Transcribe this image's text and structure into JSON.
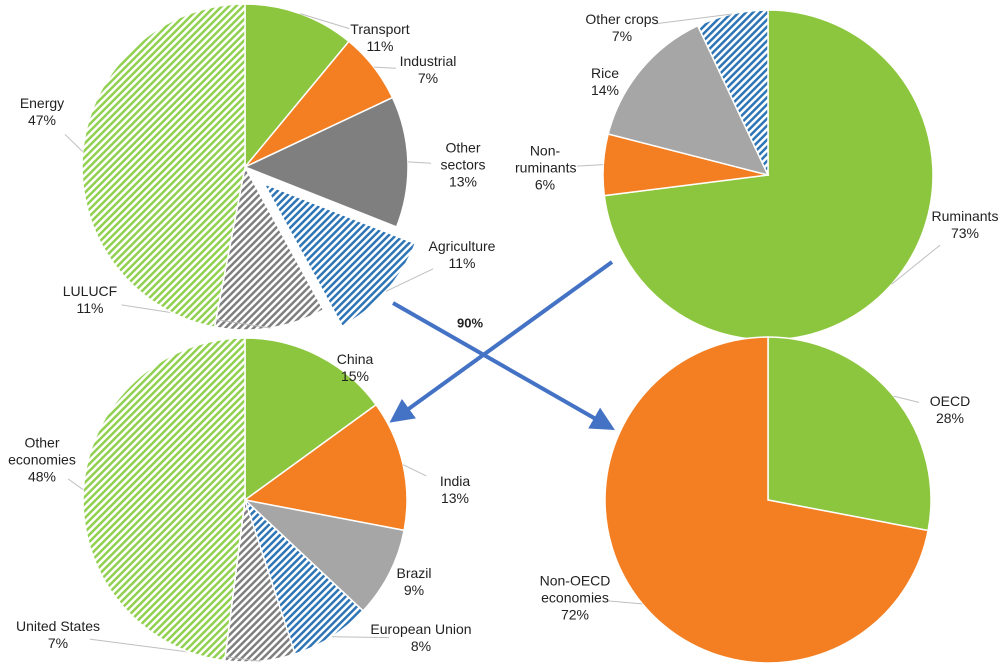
{
  "chart_data": [
    {
      "type": "pie",
      "categories": [
        "Transport",
        "Industrial",
        "Other sectors",
        "Agriculture",
        "LULUCF",
        "Energy"
      ],
      "values": [
        11,
        7,
        13,
        11,
        11,
        47
      ],
      "value_labels": [
        "11%",
        "7%",
        "13%",
        "11%",
        "11%",
        "47%"
      ],
      "colors": [
        "#8cc63e",
        "#f47f22",
        "#7f7f7f",
        "#2e75b6",
        "#7f7f7f",
        "#92d050"
      ],
      "hatched": [
        false,
        false,
        false,
        true,
        true,
        true
      ],
      "exploded": [
        false,
        false,
        false,
        true,
        false,
        false
      ]
    },
    {
      "type": "pie",
      "categories": [
        "Ruminants",
        "Non-ruminants",
        "Rice",
        "Other crops"
      ],
      "values": [
        73,
        6,
        14,
        7
      ],
      "value_labels": [
        "73%",
        "6%",
        "14%",
        "7%"
      ],
      "colors": [
        "#8cc63e",
        "#f47f22",
        "#a6a6a6",
        "#2e75b6"
      ],
      "hatched": [
        false,
        false,
        false,
        true
      ]
    },
    {
      "type": "pie",
      "categories": [
        "China",
        "India",
        "Brazil",
        "European Union",
        "United States",
        "Other economies"
      ],
      "values": [
        15,
        13,
        9,
        8,
        7,
        48
      ],
      "value_labels": [
        "15%",
        "13%",
        "9%",
        "8%",
        "7%",
        "48%"
      ],
      "colors": [
        "#8cc63e",
        "#f47f22",
        "#a6a6a6",
        "#2e75b6",
        "#7f7f7f",
        "#92d050"
      ],
      "hatched": [
        false,
        false,
        false,
        true,
        true,
        true
      ]
    },
    {
      "type": "pie",
      "categories": [
        "OECD",
        "Non-OECD economies"
      ],
      "values": [
        28,
        72
      ],
      "value_labels": [
        "28%",
        "72%"
      ],
      "colors": [
        "#8cc63e",
        "#f47f22"
      ],
      "hatched": [
        false,
        false
      ]
    }
  ],
  "annotations": [
    "90%"
  ]
}
